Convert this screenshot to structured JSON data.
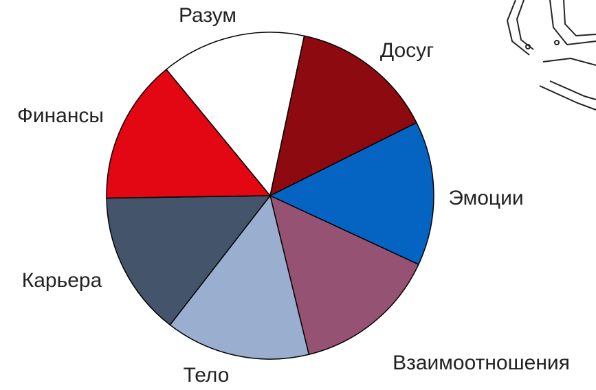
{
  "chart_data": {
    "type": "pie",
    "categories": [
      "Разум",
      "Досуг",
      "Эмоции",
      "Взаимоотношения",
      "Тело",
      "Карьера",
      "Финансы"
    ],
    "values": [
      1,
      1,
      1,
      1,
      1,
      1,
      1
    ],
    "colors": [
      "#ffffff",
      "#8c0a10",
      "#0563c1",
      "#955272",
      "#9aafcf",
      "#44546a",
      "#e30613"
    ]
  }
}
